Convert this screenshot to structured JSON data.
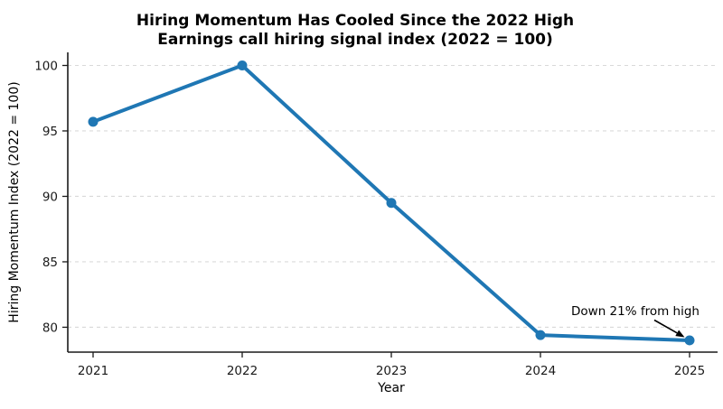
{
  "chart_data": {
    "type": "line",
    "title": "Hiring Momentum Has Cooled Since the 2022 High",
    "subtitle": "Earnings call hiring signal index (2022 = 100)",
    "xlabel": "Year",
    "ylabel": "Hiring Momentum Index (2022 = 100)",
    "categories": [
      "2021",
      "2022",
      "2023",
      "2024",
      "2025"
    ],
    "values": [
      95.7,
      100.0,
      89.5,
      79.4,
      79.0
    ],
    "series_name": "Earnings call hiring signal index",
    "y_ticks": [
      80,
      85,
      90,
      95,
      100
    ],
    "ylim": [
      78.1,
      101.0
    ],
    "grid": "horizontal-dashed",
    "legend": "none",
    "annotation": {
      "text": "Down 21% from high",
      "target_category": "2025",
      "target_value": 79.0
    },
    "colors": {
      "line": "#1f77b4",
      "marker": "#1f77b4",
      "grid": "#d9d9d9",
      "axis": "#1a1a1a",
      "text": "#000000",
      "background": "#ffffff"
    }
  }
}
